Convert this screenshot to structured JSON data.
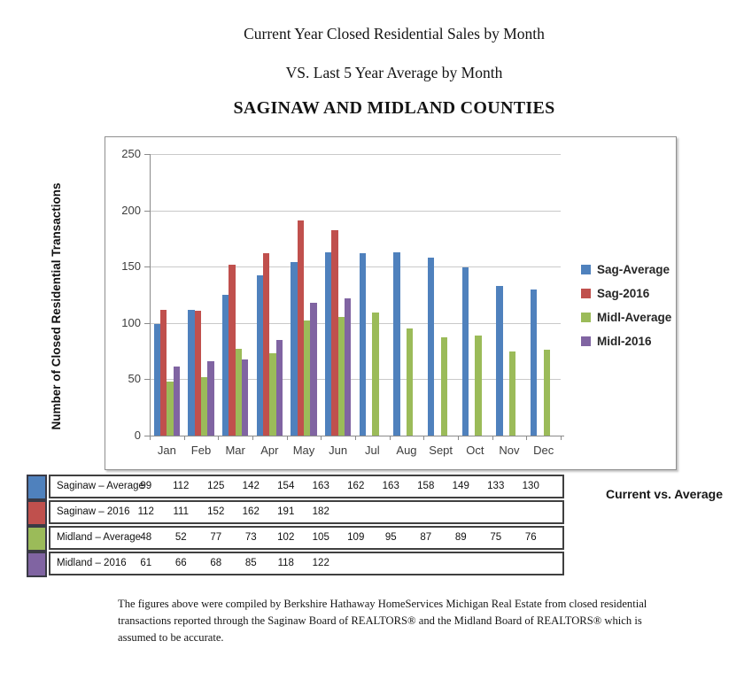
{
  "titles": {
    "line1": "Current Year Closed Residential Sales by Month",
    "line2": "VS. Last 5 Year Average by Month",
    "line3": "SAGINAW AND MIDLAND COUNTIES"
  },
  "chart_data": {
    "type": "bar",
    "title": "",
    "xlabel": "",
    "ylabel": "Number of Closed Residential Transactions",
    "ylim": [
      0,
      250
    ],
    "yticks": [
      0,
      50,
      100,
      150,
      200,
      250
    ],
    "grid": true,
    "legend_position": "right",
    "categories": [
      "Jan",
      "Feb",
      "Mar",
      "Apr",
      "May",
      "Jun",
      "Jul",
      "Aug",
      "Sept",
      "Oct",
      "Nov",
      "Dec"
    ],
    "series": [
      {
        "name": "Sag-Average",
        "color": "#4F81BD",
        "values": [
          99,
          112,
          125,
          142,
          154,
          163,
          162,
          163,
          158,
          149,
          133,
          130
        ]
      },
      {
        "name": "Sag-2016",
        "color": "#C0504D",
        "values": [
          112,
          111,
          152,
          162,
          191,
          182,
          null,
          null,
          null,
          null,
          null,
          null
        ]
      },
      {
        "name": "Midl-Average",
        "color": "#9BBB59",
        "values": [
          48,
          52,
          77,
          73,
          102,
          105,
          109,
          95,
          87,
          89,
          75,
          76
        ]
      },
      {
        "name": "Midl-2016",
        "color": "#8064A2",
        "values": [
          61,
          66,
          68,
          85,
          118,
          122,
          null,
          null,
          null,
          null,
          null,
          null
        ]
      }
    ]
  },
  "table": {
    "rows": [
      {
        "label": "Saginaw – Average",
        "color": "#4F81BD",
        "values": [
          "99",
          "112",
          "125",
          "142",
          "154",
          "163",
          "162",
          "163",
          "158",
          "149",
          "133",
          "130"
        ]
      },
      {
        "label": "Saginaw – 2016",
        "color": "#C0504D",
        "values": [
          "112",
          "111",
          "152",
          "162",
          "191",
          "182",
          "",
          "",
          "",
          "",
          "",
          ""
        ]
      },
      {
        "label": "Midland – Average",
        "color": "#9BBB59",
        "values": [
          "48",
          "52",
          "77",
          "73",
          "102",
          "105",
          "109",
          "95",
          "87",
          "89",
          "75",
          "76"
        ]
      },
      {
        "label": "Midland – 2016",
        "color": "#8064A2",
        "values": [
          "61",
          "66",
          "68",
          "85",
          "118",
          "122",
          "",
          "",
          "",
          "",
          "",
          ""
        ]
      }
    ]
  },
  "caption": "Current vs. Average",
  "footnote": "The figures above were compiled by Berkshire Hathaway HomeServices Michigan Real Estate from closed residential transactions reported through the Saginaw Board of REALTORS® and the Midland Board of REALTORS® which is assumed to be accurate."
}
